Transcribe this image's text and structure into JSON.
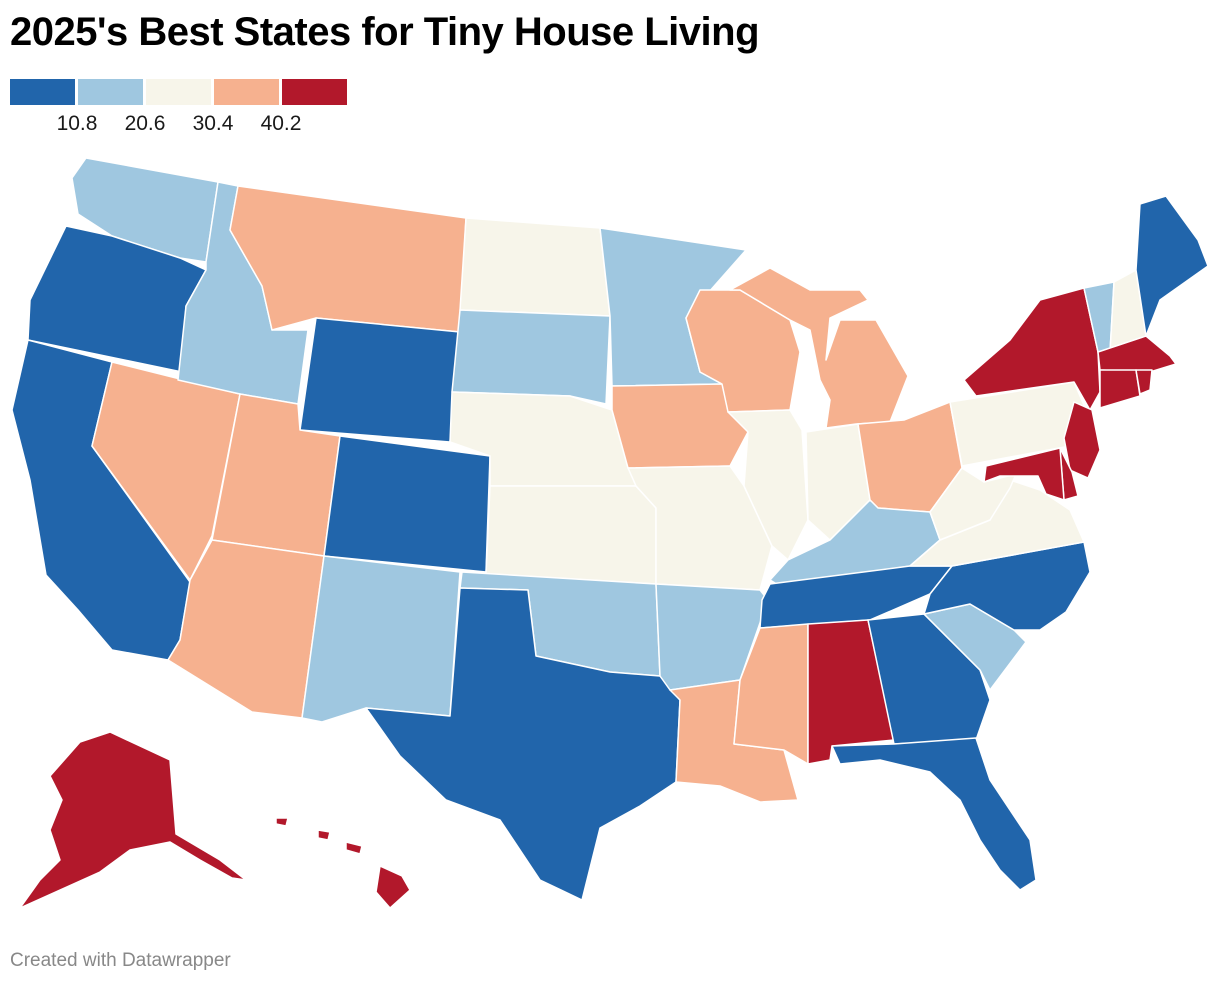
{
  "title": "2025's Best States for Tiny House Living",
  "legend": {
    "colors": [
      "#2165ab",
      "#9fc7e0",
      "#f7f5ea",
      "#f6b18f",
      "#b2182b"
    ],
    "ticks": [
      "10.8",
      "20.6",
      "30.4",
      "40.2"
    ]
  },
  "footer": "Created with Datawrapper",
  "states": [
    {
      "name": "Washington",
      "bin": 1
    },
    {
      "name": "Oregon",
      "bin": 0
    },
    {
      "name": "California",
      "bin": 0
    },
    {
      "name": "Nevada",
      "bin": 3
    },
    {
      "name": "Idaho",
      "bin": 1
    },
    {
      "name": "Montana",
      "bin": 3
    },
    {
      "name": "Wyoming",
      "bin": 0
    },
    {
      "name": "Utah",
      "bin": 3
    },
    {
      "name": "Arizona",
      "bin": 3
    },
    {
      "name": "Colorado",
      "bin": 0
    },
    {
      "name": "New Mexico",
      "bin": 1
    },
    {
      "name": "North Dakota",
      "bin": 2
    },
    {
      "name": "South Dakota",
      "bin": 1
    },
    {
      "name": "Nebraska",
      "bin": 2
    },
    {
      "name": "Kansas",
      "bin": 2
    },
    {
      "name": "Oklahoma",
      "bin": 1
    },
    {
      "name": "Texas",
      "bin": 0
    },
    {
      "name": "Minnesota",
      "bin": 1
    },
    {
      "name": "Iowa",
      "bin": 3
    },
    {
      "name": "Missouri",
      "bin": 2
    },
    {
      "name": "Arkansas",
      "bin": 1
    },
    {
      "name": "Louisiana",
      "bin": 3
    },
    {
      "name": "Wisconsin",
      "bin": 3
    },
    {
      "name": "Illinois",
      "bin": 2
    },
    {
      "name": "Michigan",
      "bin": 3
    },
    {
      "name": "Indiana",
      "bin": 2
    },
    {
      "name": "Ohio",
      "bin": 3
    },
    {
      "name": "Kentucky",
      "bin": 1
    },
    {
      "name": "Tennessee",
      "bin": 0
    },
    {
      "name": "Mississippi",
      "bin": 3
    },
    {
      "name": "Alabama",
      "bin": 4
    },
    {
      "name": "Georgia",
      "bin": 0
    },
    {
      "name": "Florida",
      "bin": 0
    },
    {
      "name": "South Carolina",
      "bin": 1
    },
    {
      "name": "North Carolina",
      "bin": 0
    },
    {
      "name": "Virginia",
      "bin": 2
    },
    {
      "name": "West Virginia",
      "bin": 2
    },
    {
      "name": "Pennsylvania",
      "bin": 2
    },
    {
      "name": "New York",
      "bin": 4
    },
    {
      "name": "Vermont",
      "bin": 1
    },
    {
      "name": "New Hampshire",
      "bin": 2
    },
    {
      "name": "Maine",
      "bin": 0
    },
    {
      "name": "Massachusetts",
      "bin": 4
    },
    {
      "name": "Rhode Island",
      "bin": 4
    },
    {
      "name": "Connecticut",
      "bin": 4
    },
    {
      "name": "New Jersey",
      "bin": 4
    },
    {
      "name": "Delaware",
      "bin": 4
    },
    {
      "name": "Maryland",
      "bin": 4
    },
    {
      "name": "Alaska",
      "bin": 4
    },
    {
      "name": "Hawaii",
      "bin": 4
    }
  ]
}
